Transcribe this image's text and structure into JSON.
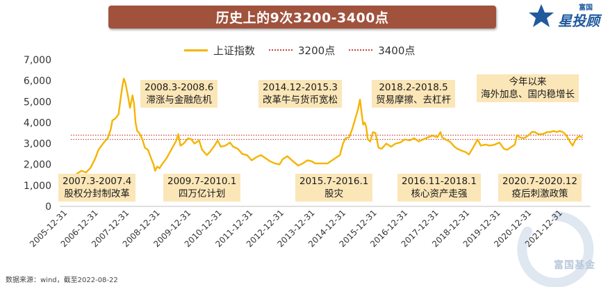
{
  "title": "历史上的9次3200-3400点",
  "logo": {
    "top_small": "富国",
    "top_main": "星投顾",
    "bottom": "富国基金"
  },
  "legend": {
    "index": "上证指数",
    "level_3200": "3200点",
    "level_3400": "3400点"
  },
  "colors": {
    "index": "#f5b400",
    "ref_line": "#c4433a",
    "annotation_bg": "#fbe6b8",
    "banner": "#a0523d"
  },
  "annotations": [
    {
      "id": "a1",
      "line1": "2007.3-2007.4",
      "line2": "股权分封制改革"
    },
    {
      "id": "a2",
      "line1": "2008.3-2008.6",
      "line2": "滞涨与金融危机"
    },
    {
      "id": "a3",
      "line1": "2009.7-2010.1",
      "line2": "四万亿计划"
    },
    {
      "id": "a4",
      "line1": "2014.12-2015.3",
      "line2": "改革牛与货币宽松"
    },
    {
      "id": "a5",
      "line1": "2015.7-2016.1",
      "line2": "股灾"
    },
    {
      "id": "a6",
      "line1": "2018.2-2018.5",
      "line2": "贸易摩擦、去杠杆"
    },
    {
      "id": "a7",
      "line1": "2016.11-2018.1",
      "line2": "核心资产走强"
    },
    {
      "id": "a8",
      "line1": "今年以来",
      "line2": "海外加息、国内稳增长"
    },
    {
      "id": "a9",
      "line1": "2020.7-2020.12",
      "line2": "疫后刺激政策"
    }
  ],
  "source": "数据来源：wind，截至2022-08-22",
  "chart_data": {
    "type": "line",
    "series": [
      {
        "name": "上证指数",
        "points": [
          [
            2005.9,
            1160
          ],
          [
            2006.0,
            1170
          ],
          [
            2006.15,
            1280
          ],
          [
            2006.3,
            1560
          ],
          [
            2006.45,
            1700
          ],
          [
            2006.6,
            1620
          ],
          [
            2006.75,
            1850
          ],
          [
            2006.9,
            2300
          ],
          [
            2007.0,
            2700
          ],
          [
            2007.1,
            2900
          ],
          [
            2007.2,
            3100
          ],
          [
            2007.3,
            3250
          ],
          [
            2007.4,
            3700
          ],
          [
            2007.45,
            4100
          ],
          [
            2007.55,
            4200
          ],
          [
            2007.65,
            4400
          ],
          [
            2007.72,
            5200
          ],
          [
            2007.78,
            5800
          ],
          [
            2007.82,
            6100
          ],
          [
            2007.87,
            5900
          ],
          [
            2007.95,
            5300
          ],
          [
            2008.02,
            4700
          ],
          [
            2008.1,
            5300
          ],
          [
            2008.15,
            4900
          ],
          [
            2008.2,
            4000
          ],
          [
            2008.25,
            3600
          ],
          [
            2008.32,
            3500
          ],
          [
            2008.42,
            3200
          ],
          [
            2008.5,
            2800
          ],
          [
            2008.6,
            2700
          ],
          [
            2008.7,
            2300
          ],
          [
            2008.78,
            2000
          ],
          [
            2008.83,
            1700
          ],
          [
            2008.9,
            1900
          ],
          [
            2008.97,
            1820
          ],
          [
            2009.1,
            2100
          ],
          [
            2009.2,
            2300
          ],
          [
            2009.35,
            2700
          ],
          [
            2009.5,
            3100
          ],
          [
            2009.58,
            3450
          ],
          [
            2009.65,
            2900
          ],
          [
            2009.75,
            3000
          ],
          [
            2009.9,
            3250
          ],
          [
            2010.0,
            3200
          ],
          [
            2010.1,
            3000
          ],
          [
            2010.25,
            3150
          ],
          [
            2010.35,
            2700
          ],
          [
            2010.5,
            2450
          ],
          [
            2010.6,
            2600
          ],
          [
            2010.75,
            2900
          ],
          [
            2010.85,
            3150
          ],
          [
            2010.95,
            2850
          ],
          [
            2011.1,
            2900
          ],
          [
            2011.25,
            3050
          ],
          [
            2011.35,
            2850
          ],
          [
            2011.5,
            2750
          ],
          [
            2011.65,
            2500
          ],
          [
            2011.8,
            2450
          ],
          [
            2011.95,
            2200
          ],
          [
            2012.1,
            2350
          ],
          [
            2012.25,
            2450
          ],
          [
            2012.4,
            2300
          ],
          [
            2012.55,
            2150
          ],
          [
            2012.7,
            2050
          ],
          [
            2012.85,
            2000
          ],
          [
            2012.95,
            2250
          ],
          [
            2013.1,
            2400
          ],
          [
            2013.25,
            2200
          ],
          [
            2013.45,
            1950
          ],
          [
            2013.6,
            2050
          ],
          [
            2013.75,
            2200
          ],
          [
            2013.9,
            2150
          ],
          [
            2014.0,
            2050
          ],
          [
            2014.2,
            2050
          ],
          [
            2014.4,
            2050
          ],
          [
            2014.55,
            2200
          ],
          [
            2014.7,
            2350
          ],
          [
            2014.8,
            2450
          ],
          [
            2014.9,
            3000
          ],
          [
            2014.98,
            3250
          ],
          [
            2015.1,
            3300
          ],
          [
            2015.2,
            3700
          ],
          [
            2015.3,
            4200
          ],
          [
            2015.38,
            4600
          ],
          [
            2015.45,
            5100
          ],
          [
            2015.5,
            4500
          ],
          [
            2015.55,
            3900
          ],
          [
            2015.6,
            4000
          ],
          [
            2015.65,
            3800
          ],
          [
            2015.7,
            3200
          ],
          [
            2015.78,
            3100
          ],
          [
            2015.87,
            3550
          ],
          [
            2015.95,
            3500
          ],
          [
            2016.05,
            2800
          ],
          [
            2016.15,
            2750
          ],
          [
            2016.3,
            3000
          ],
          [
            2016.45,
            2850
          ],
          [
            2016.6,
            3000
          ],
          [
            2016.75,
            3050
          ],
          [
            2016.9,
            3200
          ],
          [
            2017.05,
            3150
          ],
          [
            2017.2,
            3250
          ],
          [
            2017.35,
            3100
          ],
          [
            2017.5,
            3200
          ],
          [
            2017.65,
            3300
          ],
          [
            2017.8,
            3380
          ],
          [
            2017.95,
            3300
          ],
          [
            2018.05,
            3550
          ],
          [
            2018.1,
            3300
          ],
          [
            2018.2,
            3200
          ],
          [
            2018.35,
            3100
          ],
          [
            2018.5,
            2850
          ],
          [
            2018.6,
            2750
          ],
          [
            2018.75,
            2650
          ],
          [
            2018.85,
            2600
          ],
          [
            2018.97,
            2480
          ],
          [
            2019.1,
            2800
          ],
          [
            2019.25,
            3200
          ],
          [
            2019.35,
            2900
          ],
          [
            2019.5,
            2950
          ],
          [
            2019.65,
            2900
          ],
          [
            2019.8,
            2950
          ],
          [
            2019.95,
            3050
          ],
          [
            2020.1,
            2750
          ],
          [
            2020.2,
            2700
          ],
          [
            2020.35,
            2850
          ],
          [
            2020.45,
            2950
          ],
          [
            2020.52,
            3400
          ],
          [
            2020.6,
            3300
          ],
          [
            2020.75,
            3250
          ],
          [
            2020.9,
            3400
          ],
          [
            2021.0,
            3550
          ],
          [
            2021.1,
            3550
          ],
          [
            2021.2,
            3450
          ],
          [
            2021.35,
            3450
          ],
          [
            2021.5,
            3550
          ],
          [
            2021.6,
            3550
          ],
          [
            2021.7,
            3600
          ],
          [
            2021.8,
            3550
          ],
          [
            2021.9,
            3600
          ],
          [
            2022.0,
            3550
          ],
          [
            2022.08,
            3450
          ],
          [
            2022.15,
            3300
          ],
          [
            2022.25,
            3050
          ],
          [
            2022.32,
            2900
          ],
          [
            2022.4,
            3150
          ],
          [
            2022.48,
            3300
          ],
          [
            2022.55,
            3350
          ],
          [
            2022.64,
            3280
          ]
        ]
      }
    ],
    "reference_lines": [
      {
        "name": "3200点",
        "value": 3200
      },
      {
        "name": "3400点",
        "value": 3400
      }
    ],
    "x_tick_labels": [
      "2005-12-31",
      "2006-12-31",
      "2007-12-31",
      "2008-12-31",
      "2009-12-31",
      "2010-12-31",
      "2011-12-31",
      "2012-12-31",
      "2013-12-31",
      "2014-12-31",
      "2015-12-31",
      "2016-12-31",
      "2017-12-31",
      "2018-12-31",
      "2019-12-31",
      "2020-12-31",
      "2021-12-31"
    ],
    "y_tick_labels": [
      "0",
      "1,000",
      "2,000",
      "3,000",
      "4,000",
      "5,000",
      "6,000",
      "7,000"
    ],
    "ylim": [
      0,
      7000
    ],
    "xlim": [
      2005.75,
      2022.9
    ],
    "grid": false,
    "legend_position": "top-center"
  }
}
